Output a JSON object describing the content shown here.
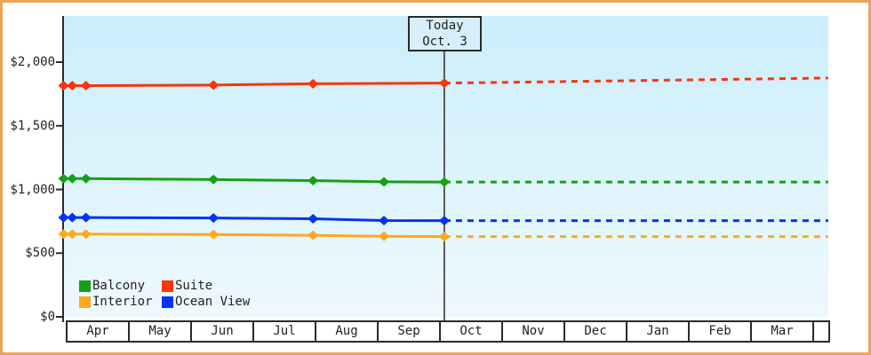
{
  "colors": {
    "frame_border": "#eaa55e",
    "axis": "#2a2a2a",
    "text": "#222222",
    "plot_bg_top": "#cbeefb",
    "plot_bg_bottom": "#eef9fe",
    "today_box_fill": "#d6effa"
  },
  "today_box": {
    "line1": "Today",
    "line2": "Oct. 3"
  },
  "legend": {
    "items": [
      {
        "label": "Balcony",
        "color": "#16a016"
      },
      {
        "label": "Suite",
        "color": "#f8350b"
      },
      {
        "label": "Interior",
        "color": "#ffa81e"
      },
      {
        "label": "Ocean View",
        "color": "#0533f0"
      }
    ]
  },
  "chart_data": {
    "type": "line",
    "title": "",
    "xlabel": "",
    "ylabel": "",
    "grid": false,
    "legend_position": "inside-bottom-left",
    "categories": [
      "Apr",
      "May",
      "Jun",
      "Jul",
      "Aug",
      "Sep",
      "Oct",
      "Nov",
      "Dec",
      "Jan",
      "Feb",
      "Mar"
    ],
    "yticks": [
      {
        "label": "$2,000",
        "value": 2000
      },
      {
        "label": "$1,500",
        "value": 1500
      },
      {
        "label": "$1,000",
        "value": 1000
      },
      {
        "label": "$500",
        "value": 500
      },
      {
        "label": "$0",
        "value": 0
      }
    ],
    "ylim": [
      0,
      2000
    ],
    "x_unit": "months from Apr 1 (t=0); chart spans Apr through Mar, right edge t=12.24",
    "today": {
      "t": 6.07,
      "date": "Oct. 3"
    },
    "series": [
      {
        "name": "Balcony",
        "color": "#16a016",
        "dates": [
          "Mar 30",
          "Apr 4",
          "Apr 10",
          "Jun 12",
          "Jul 30",
          "Sep 3",
          "Oct 3"
        ],
        "t": [
          -0.05,
          0.09,
          0.31,
          2.36,
          3.96,
          5.1,
          6.07
        ],
        "values": [
          1085,
          1085,
          1085,
          1078,
          1070,
          1060,
          1058
        ],
        "forecast": {
          "t": [
            6.07,
            12.24
          ],
          "values": [
            1058,
            1058
          ]
        }
      },
      {
        "name": "Suite",
        "color": "#f8350b",
        "dates": [
          "Mar 30",
          "Apr 4",
          "Apr 10",
          "Jun 12",
          "Jul 30",
          "Oct 3"
        ],
        "t": [
          -0.05,
          0.09,
          0.31,
          2.36,
          3.96,
          6.07
        ],
        "values": [
          1815,
          1815,
          1815,
          1820,
          1830,
          1835
        ],
        "forecast": {
          "t": [
            6.07,
            12.24
          ],
          "values": [
            1835,
            1875
          ]
        }
      },
      {
        "name": "Interior",
        "color": "#ffa81e",
        "dates": [
          "Mar 30",
          "Apr 4",
          "Apr 10",
          "Jun 12",
          "Jul 30",
          "Sep 3",
          "Oct 3"
        ],
        "t": [
          -0.05,
          0.09,
          0.31,
          2.36,
          3.96,
          5.1,
          6.07
        ],
        "values": [
          650,
          650,
          650,
          646,
          640,
          632,
          630
        ],
        "forecast": {
          "t": [
            6.07,
            12.24
          ],
          "values": [
            630,
            630
          ]
        }
      },
      {
        "name": "Ocean View",
        "color": "#0533f0",
        "dates": [
          "Mar 30",
          "Apr 4",
          "Apr 10",
          "Jun 12",
          "Jul 30",
          "Sep 3",
          "Oct 3"
        ],
        "t": [
          -0.05,
          0.09,
          0.31,
          2.36,
          3.96,
          5.1,
          6.07
        ],
        "values": [
          780,
          780,
          780,
          776,
          770,
          756,
          755
        ],
        "forecast": {
          "t": [
            6.07,
            12.24
          ],
          "values": [
            755,
            755
          ]
        }
      }
    ]
  }
}
